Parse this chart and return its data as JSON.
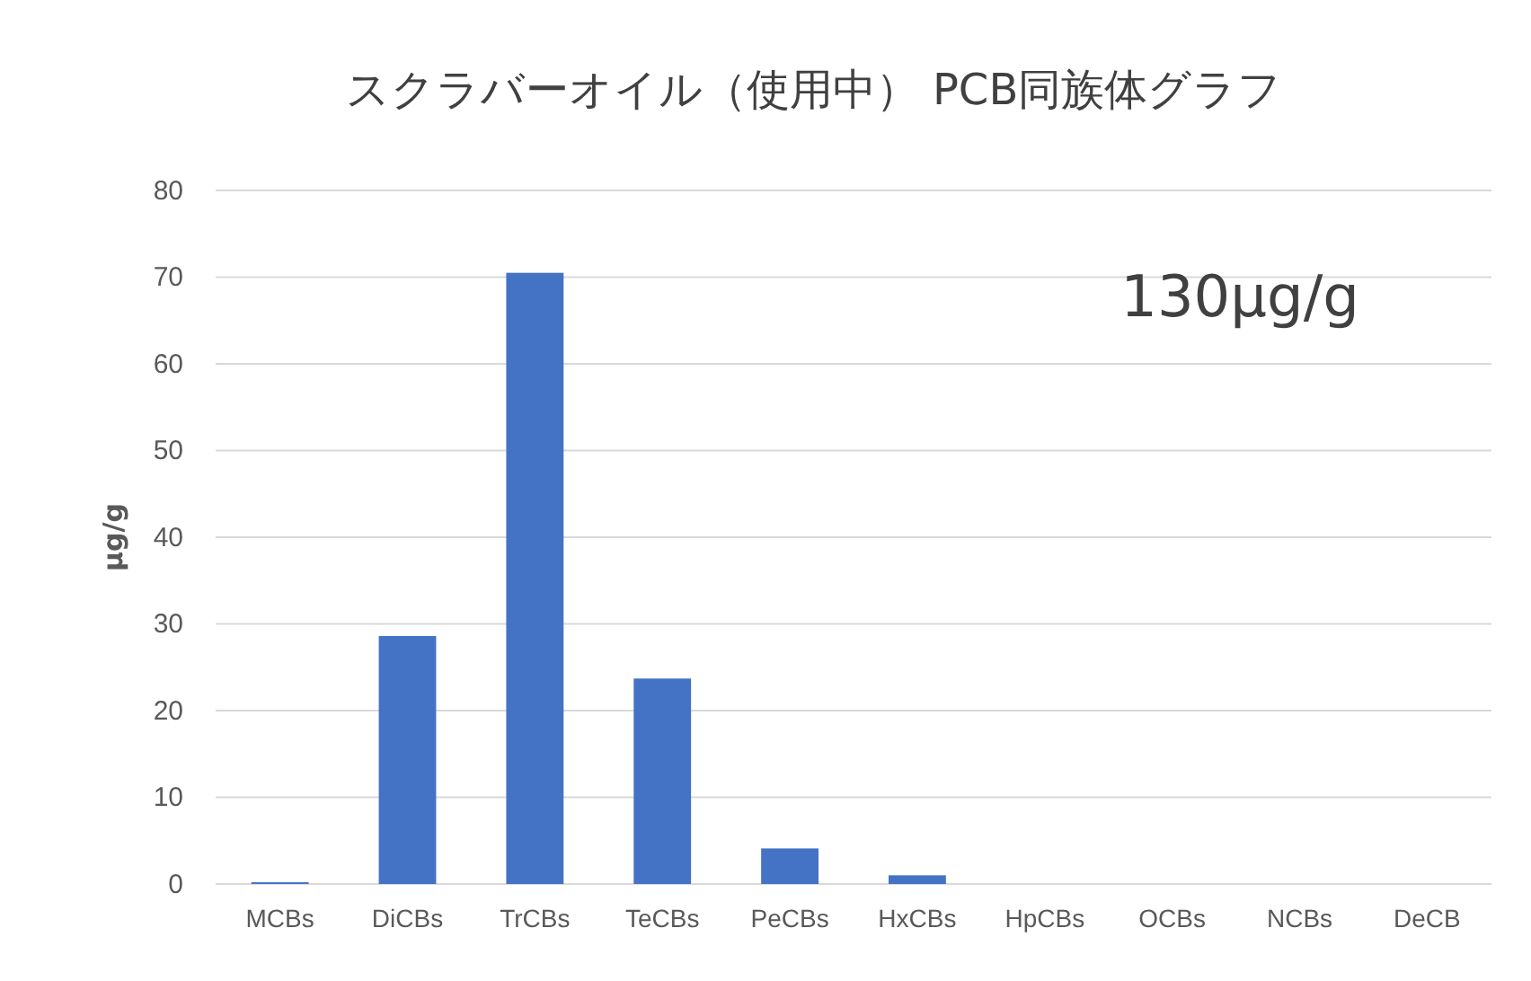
{
  "chart_data": {
    "type": "bar",
    "title": "スクラバーオイル（使用中） PCB同族体グラフ",
    "ylabel": "μg/g",
    "categories": [
      "MCBs",
      "DiCBs",
      "TrCBs",
      "TeCBs",
      "PeCBs",
      "HxCBs",
      "HpCBs",
      "OCBs",
      "NCBs",
      "DeCB"
    ],
    "values": [
      0.2,
      28.6,
      70.5,
      23.7,
      4.1,
      1.0,
      0,
      0,
      0,
      0
    ],
    "color": "#4472c4",
    "ylim": [
      0,
      80
    ],
    "yticks": [
      0,
      10,
      20,
      30,
      40,
      50,
      60,
      70,
      80
    ],
    "grid": "y",
    "annotations": [
      "130μg/g"
    ]
  }
}
